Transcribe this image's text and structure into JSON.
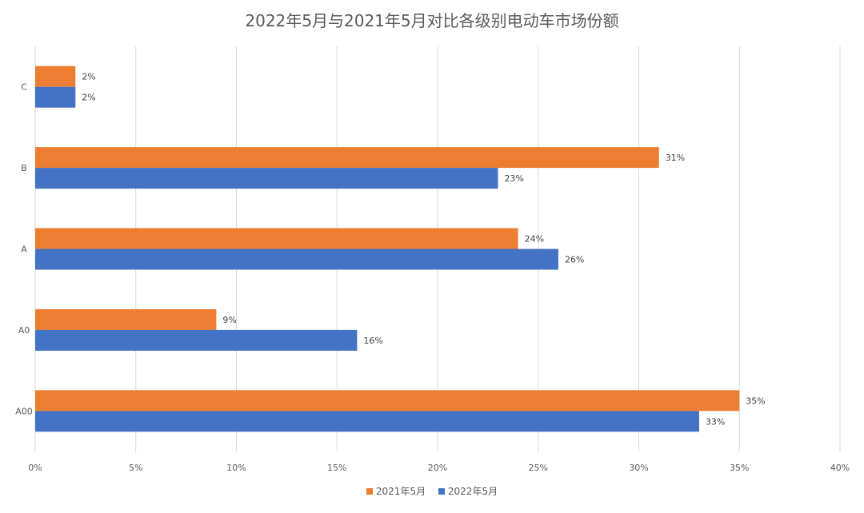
{
  "chart_data": {
    "type": "bar",
    "orientation": "horizontal",
    "title": "2022年5月与2021年5月对比各级别电动车市场份额",
    "categories": [
      "C",
      "B",
      "A",
      "A0",
      "A00"
    ],
    "series": [
      {
        "name": "2021年5月",
        "color": "#ED7D31",
        "values": [
          2,
          31,
          24,
          9,
          35
        ],
        "labels": [
          "2%",
          "31%",
          "24%",
          "9%",
          "35%"
        ]
      },
      {
        "name": "2022年5月",
        "color": "#4472C4",
        "values": [
          2,
          23,
          26,
          16,
          33
        ],
        "labels": [
          "2%",
          "23%",
          "26%",
          "16%",
          "33%"
        ]
      }
    ],
    "xlim": [
      0,
      40
    ],
    "xticks": [
      0,
      5,
      10,
      15,
      20,
      25,
      30,
      35,
      40
    ],
    "xtick_labels": [
      "0%",
      "5%",
      "10%",
      "15%",
      "20%",
      "25%",
      "30%",
      "35%",
      "40%"
    ],
    "grid": true,
    "legend_position": "bottom"
  }
}
